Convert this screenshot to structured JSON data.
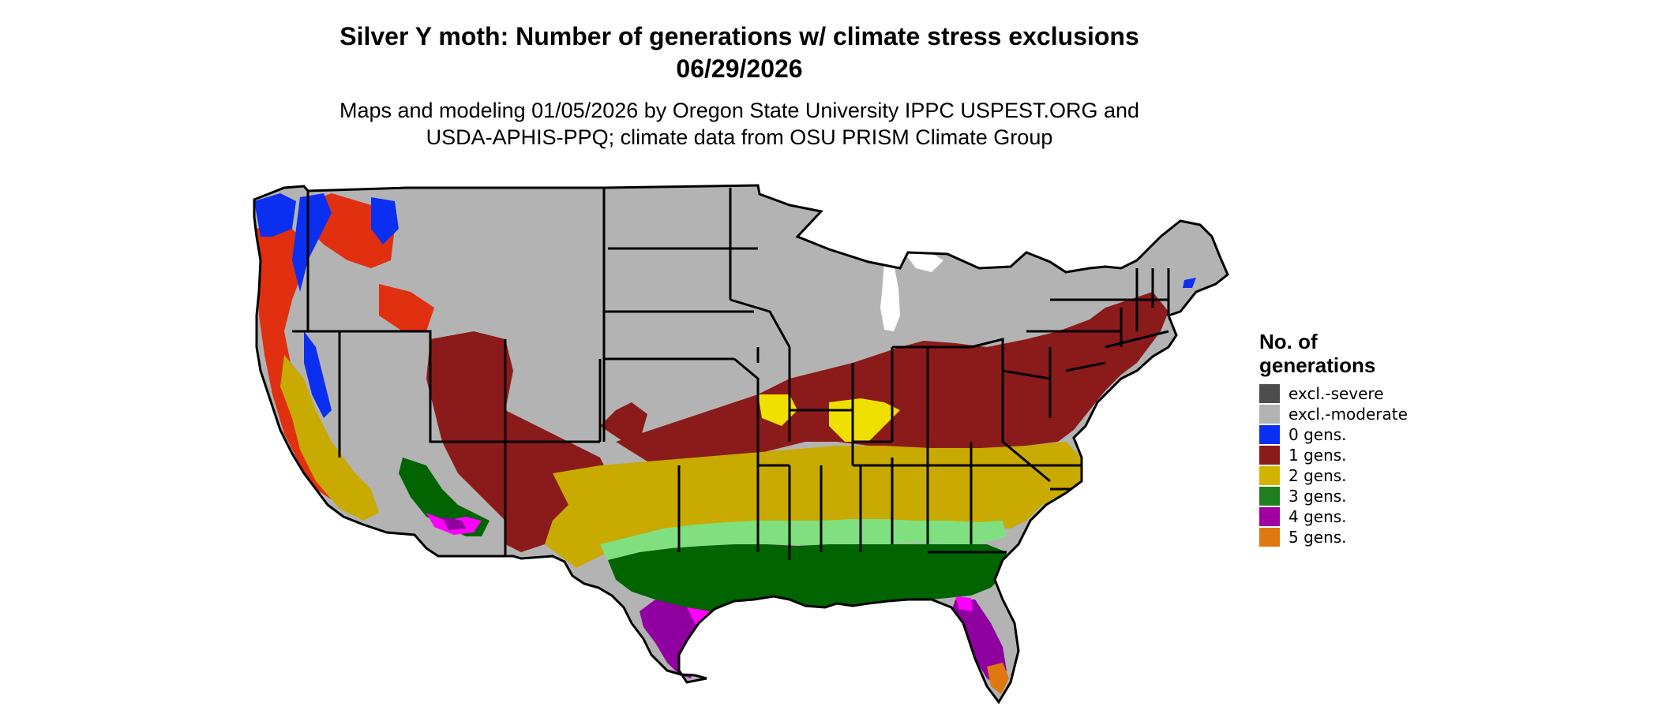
{
  "header": {
    "title_line1": "Silver Y moth: Number of generations w/ climate stress exclusions",
    "title_line2": "06/29/2026",
    "subtitle_line1": "Maps and modeling 01/05/2026 by Oregon State University IPPC USPEST.ORG and",
    "subtitle_line2": "USDA-APHIS-PPQ; climate data from OSU PRISM Climate Group"
  },
  "legend": {
    "title_line1": "No. of",
    "title_line2": "generations",
    "items": [
      {
        "label": "excl.-severe",
        "color": "#4d4d4d"
      },
      {
        "label": "excl.-moderate",
        "color": "#b3b3b3"
      },
      {
        "label": "0 gens.",
        "color": "#0b2ff0"
      },
      {
        "label": "1 gens.",
        "color": "#8b1a1a"
      },
      {
        "label": "2 gens.",
        "color": "#d2b400"
      },
      {
        "label": "3 gens.",
        "color": "#1f7f1f"
      },
      {
        "label": "4 gens.",
        "color": "#a000a0"
      },
      {
        "label": "5 gens.",
        "color": "#e07810"
      }
    ]
  },
  "map_colors": {
    "background_land": "#b3b3b3",
    "zero_gens": "#0b2ff0",
    "one_gen_red": "#e03010",
    "one_gen_dark": "#8b1a1a",
    "two_gens_yellow": "#f0e000",
    "two_gens_gold": "#c8aa00",
    "three_gens_light": "#80e080",
    "three_gens_dark": "#006400",
    "four_gens_magenta": "#ff00ff",
    "four_gens_purple": "#9000a0",
    "five_gens": "#e07810",
    "borders": "#000000"
  }
}
